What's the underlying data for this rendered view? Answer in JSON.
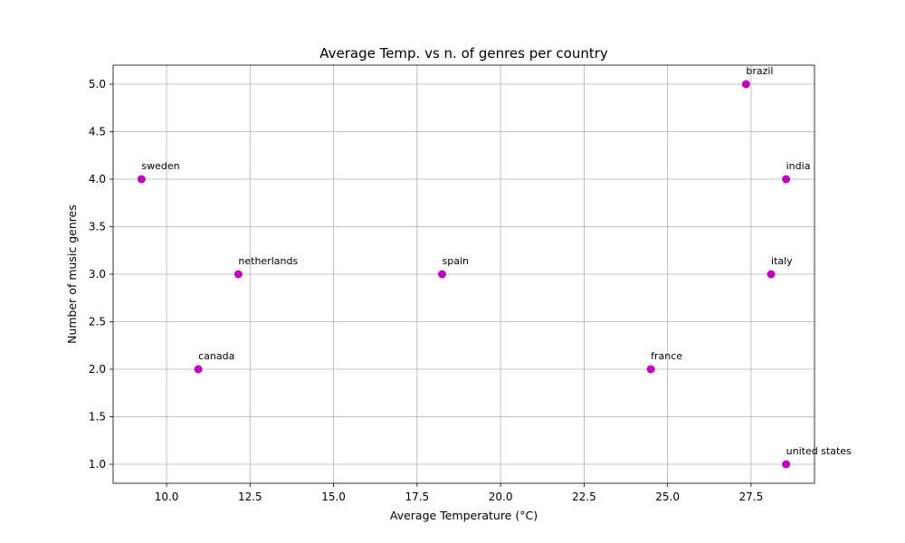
{
  "chart_data": {
    "type": "scatter",
    "title": "Average Temp. vs n. of genres per country",
    "xlabel": "Average Temperature (°C)",
    "ylabel": "Number of music genres",
    "xlim": [
      8.4,
      29.4
    ],
    "ylim": [
      0.8,
      5.2
    ],
    "xticks": [
      10.0,
      12.5,
      15.0,
      17.5,
      20.0,
      22.5,
      25.0,
      27.5
    ],
    "xtick_labels": [
      "10.0",
      "12.5",
      "15.0",
      "17.5",
      "20.0",
      "22.5",
      "25.0",
      "27.5"
    ],
    "yticks": [
      1.0,
      1.5,
      2.0,
      2.5,
      3.0,
      3.5,
      4.0,
      4.5,
      5.0
    ],
    "ytick_labels": [
      "1.0",
      "1.5",
      "2.0",
      "2.5",
      "3.0",
      "3.5",
      "4.0",
      "4.5",
      "5.0"
    ],
    "grid": true,
    "marker_color": "#bf00bf",
    "points": [
      {
        "label": "sweden",
        "x": 9.25,
        "y": 4.0
      },
      {
        "label": "canada",
        "x": 10.95,
        "y": 2.0
      },
      {
        "label": "netherlands",
        "x": 12.15,
        "y": 3.0
      },
      {
        "label": "spain",
        "x": 18.25,
        "y": 3.0
      },
      {
        "label": "france",
        "x": 24.5,
        "y": 2.0
      },
      {
        "label": "brazil",
        "x": 27.35,
        "y": 5.0
      },
      {
        "label": "italy",
        "x": 28.1,
        "y": 3.0
      },
      {
        "label": "india",
        "x": 28.55,
        "y": 4.0
      },
      {
        "label": "united states",
        "x": 28.55,
        "y": 1.0
      }
    ]
  }
}
